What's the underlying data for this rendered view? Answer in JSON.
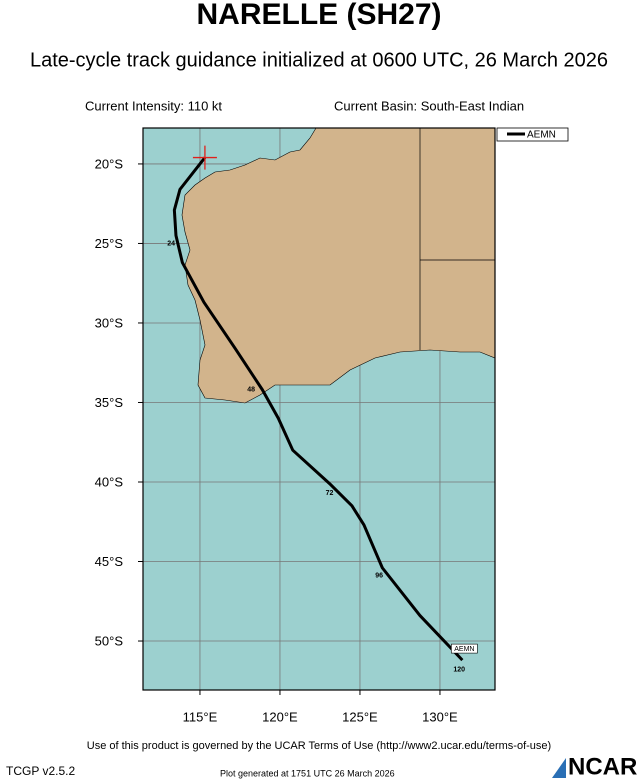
{
  "chart_data": {
    "type": "track",
    "title": "NARELLE (SH27)",
    "subtitle": "Late-cycle track guidance initialized at 0600 UTC, 26 March 2026",
    "annotations": [
      "Current Intensity: 110 kt",
      "Current Basin: South-East Indian"
    ],
    "xlim": [
      111.44,
      133.44
    ],
    "ylim": [
      -53.08,
      -17.74
    ],
    "xticks": [
      {
        "value": 115,
        "label": "115°E"
      },
      {
        "value": 120,
        "label": "120°E"
      },
      {
        "value": 125,
        "label": "125°E"
      },
      {
        "value": 130,
        "label": "130°E"
      }
    ],
    "yticks": [
      {
        "value": -20,
        "label": "20°S"
      },
      {
        "value": -25,
        "label": "25°S"
      },
      {
        "value": -30,
        "label": "30°S"
      },
      {
        "value": -35,
        "label": "35°S"
      },
      {
        "value": -40,
        "label": "40°S"
      },
      {
        "value": -45,
        "label": "45°S"
      },
      {
        "value": -50,
        "label": "50°S"
      }
    ],
    "grid": true,
    "x": [
      115.31,
      113.75,
      113.4,
      113.5,
      113.9,
      115.25,
      117.2,
      118.9,
      119.9,
      120.8,
      123.1,
      124.5,
      125.25,
      126.4,
      128.75,
      131.4
    ],
    "series": [
      {
        "name": "AEMN",
        "color": "#000000",
        "values": [
          -19.6,
          -21.6,
          -22.9,
          -24.5,
          -26.2,
          -28.7,
          -31.6,
          -34.2,
          -36.0,
          -38.0,
          -40.1,
          -41.5,
          -42.7,
          -45.4,
          -48.4,
          -51.2
        ]
      }
    ],
    "hour_labels": {
      "values": [
        24,
        48,
        72,
        96,
        120
      ],
      "lon": [
        113.2,
        118.2,
        123.1,
        126.2,
        131.2
      ],
      "lat": [
        -25.0,
        -34.2,
        -40.7,
        -45.9,
        -51.8
      ]
    },
    "footer": {
      "terms": "Use of this product is governed by the UCAR Terms of Use (http://www2.ucar.edu/terms-of-use)",
      "version": "TCGP v2.5.2",
      "generated": "Plot generated at 1751 UTC   26 March 2026",
      "logo": "NCAR"
    }
  }
}
